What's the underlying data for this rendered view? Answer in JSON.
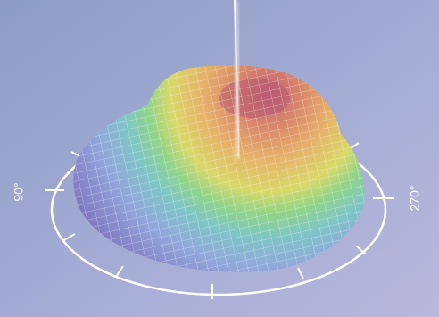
{
  "labels": {
    "left": "90°",
    "right": "270°"
  }
}
